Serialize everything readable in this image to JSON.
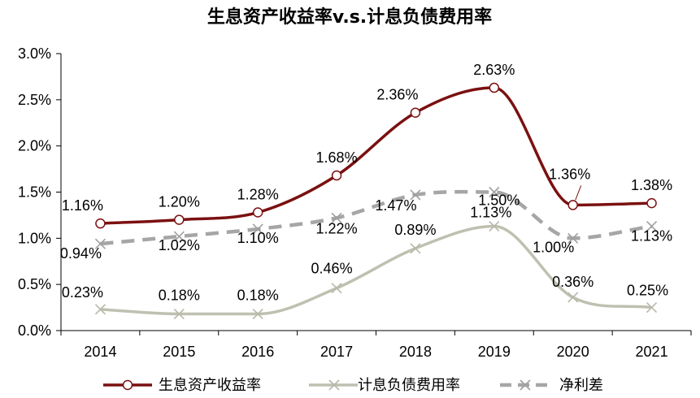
{
  "chart_data": {
    "type": "line",
    "title": "生息资产收益率v.s.计息负债费用率",
    "categories": [
      "2014",
      "2015",
      "2016",
      "2017",
      "2018",
      "2019",
      "2020",
      "2021"
    ],
    "ylim": [
      0,
      3.0
    ],
    "y_ticks": [
      "0.0%",
      "0.5%",
      "1.0%",
      "1.5%",
      "2.0%",
      "2.5%",
      "3.0%"
    ],
    "grid": false,
    "legend_position": "bottom",
    "series": [
      {
        "name": "生息资产收益率",
        "values": [
          1.16,
          1.2,
          1.28,
          1.68,
          2.36,
          2.63,
          1.36,
          1.38
        ],
        "labels": [
          "1.16%",
          "1.20%",
          "1.28%",
          "1.68%",
          "2.36%",
          "2.63%",
          "1.36%",
          "1.38%"
        ],
        "color": "#7B1010",
        "style": "solid-circle"
      },
      {
        "name": "计息负债费用率",
        "values": [
          0.23,
          0.18,
          0.18,
          0.46,
          0.89,
          1.13,
          0.36,
          0.25
        ],
        "labels": [
          "0.23%",
          "0.18%",
          "0.18%",
          "0.46%",
          "0.89%",
          "1.13%",
          "0.36%",
          "0.25%"
        ],
        "color": "#BFC0B0",
        "style": "solid-x"
      },
      {
        "name": "净利差",
        "values": [
          0.94,
          1.02,
          1.1,
          1.22,
          1.47,
          1.5,
          1.0,
          1.13
        ],
        "labels": [
          "0.94%",
          "1.02%",
          "1.10%",
          "1.22%",
          "1.47%",
          "1.50%",
          "1.00%",
          "1.13%"
        ],
        "color": "#A6A6A6",
        "style": "dashed-x"
      }
    ]
  }
}
